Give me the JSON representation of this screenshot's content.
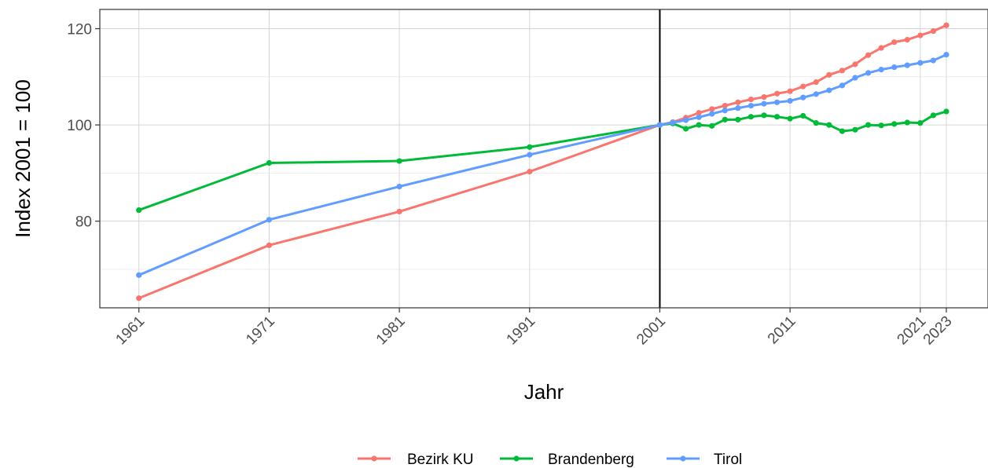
{
  "chart_data": {
    "type": "line",
    "xlabel": "Jahr",
    "ylabel": "Index 2001 = 100",
    "x_ticks": [
      1961,
      1971,
      1981,
      1991,
      2001,
      2011,
      2021,
      2023
    ],
    "y_ticks": [
      80,
      100,
      120
    ],
    "xlim": [
      1961,
      2023
    ],
    "ylim": [
      62,
      124
    ],
    "vline_x": 2001,
    "grid": true,
    "legend_position": "bottom",
    "series": [
      {
        "name": "Bezirk KU",
        "color": "#f8766d",
        "x": [
          1961,
          1971,
          1981,
          1991,
          2001,
          2002,
          2003,
          2004,
          2005,
          2006,
          2007,
          2008,
          2009,
          2010,
          2011,
          2012,
          2013,
          2014,
          2015,
          2016,
          2017,
          2018,
          2019,
          2020,
          2021,
          2022,
          2023
        ],
        "y": [
          64.0,
          75.0,
          82.0,
          90.3,
          100.0,
          100.6,
          101.5,
          102.5,
          103.3,
          104.0,
          104.7,
          105.3,
          105.8,
          106.5,
          107.0,
          108.0,
          108.9,
          110.4,
          111.3,
          112.6,
          114.5,
          116.0,
          117.2,
          117.7,
          118.6,
          119.5,
          120.7
        ]
      },
      {
        "name": "Brandenberg",
        "color": "#00ba38",
        "x": [
          1961,
          1971,
          1981,
          1991,
          2001,
          2002,
          2003,
          2004,
          2005,
          2006,
          2007,
          2008,
          2009,
          2010,
          2011,
          2012,
          2013,
          2014,
          2015,
          2016,
          2017,
          2018,
          2019,
          2020,
          2021,
          2022,
          2023
        ],
        "y": [
          82.3,
          92.1,
          92.5,
          95.4,
          100.0,
          100.3,
          99.2,
          100.0,
          99.8,
          101.1,
          101.1,
          101.7,
          102.0,
          101.7,
          101.3,
          101.9,
          100.4,
          100.0,
          98.7,
          99.0,
          100.0,
          99.9,
          100.2,
          100.5,
          100.4,
          102.0,
          102.8
        ]
      },
      {
        "name": "Tirol",
        "color": "#619cff",
        "x": [
          1961,
          1971,
          1981,
          1991,
          2001,
          2002,
          2003,
          2004,
          2005,
          2006,
          2007,
          2008,
          2009,
          2010,
          2011,
          2012,
          2013,
          2014,
          2015,
          2016,
          2017,
          2018,
          2019,
          2020,
          2021,
          2022,
          2023
        ],
        "y": [
          68.8,
          80.3,
          87.2,
          93.8,
          100.0,
          100.5,
          101.0,
          101.6,
          102.3,
          103.0,
          103.5,
          104.0,
          104.4,
          104.7,
          105.0,
          105.7,
          106.4,
          107.2,
          108.2,
          109.8,
          110.8,
          111.5,
          112.0,
          112.4,
          112.9,
          113.4,
          114.6
        ]
      }
    ]
  }
}
